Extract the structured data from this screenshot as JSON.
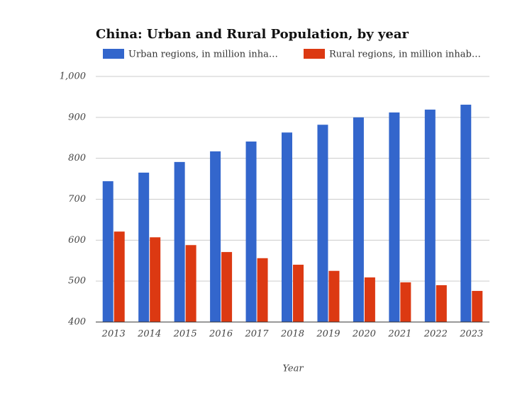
{
  "chart_data": {
    "type": "bar",
    "title": "China: Urban and Rural Population, by year",
    "x_label": "Year",
    "categories": [
      "2013",
      "2014",
      "2015",
      "2016",
      "2017",
      "2018",
      "2019",
      "2020",
      "2021",
      "2022",
      "2023"
    ],
    "series": [
      {
        "name": "Urban regions, in million inha…",
        "color": "#3366cc",
        "values": [
          744,
          765,
          791,
          817,
          841,
          863,
          882,
          900,
          912,
          919,
          931
        ]
      },
      {
        "name": "Rural regions, in million inhab…",
        "color": "#dc3912",
        "values": [
          621,
          607,
          588,
          571,
          556,
          540,
          525,
          509,
          497,
          490,
          476
        ]
      }
    ],
    "ylim": [
      400,
      1000
    ],
    "yticks": [
      400,
      500,
      600,
      700,
      800,
      900,
      {
        "value": 1000,
        "label": "1,000"
      }
    ],
    "grid": true,
    "legend": "top"
  }
}
